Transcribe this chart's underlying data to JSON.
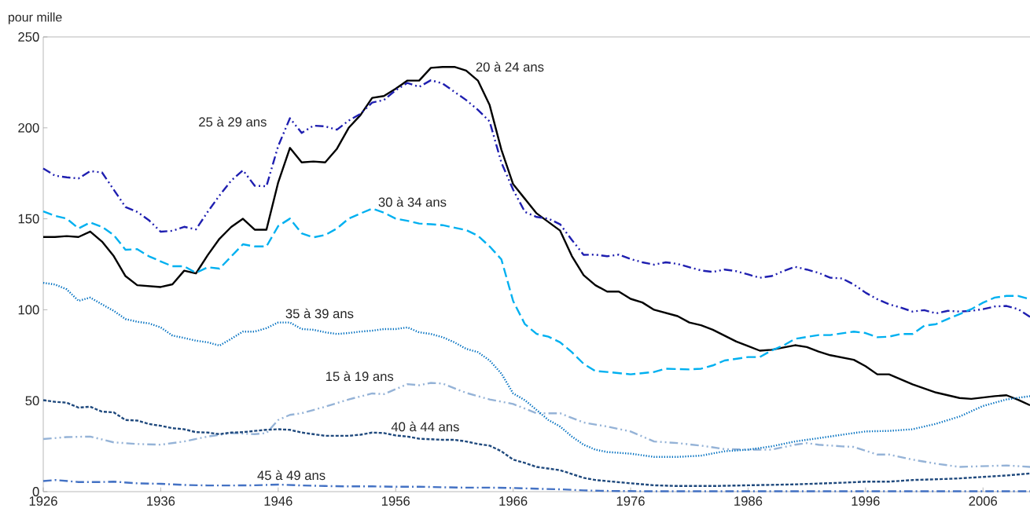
{
  "chart_data": {
    "type": "line",
    "ylabel": "pour mille",
    "xlim": [
      1926,
      2010
    ],
    "xticks": [
      1926,
      1936,
      1946,
      1956,
      1966,
      1976,
      1986,
      1996,
      2006
    ],
    "ylim": [
      0,
      250
    ],
    "yticks": [
      0,
      50,
      100,
      150,
      200,
      250
    ],
    "series": [
      {
        "name": "15 à 19 ans",
        "color": "#95b3d7",
        "line_style": "dashdotdot",
        "x": [
          1926,
          1928,
          1930,
          1932,
          1934,
          1936,
          1938,
          1940,
          1942,
          1944,
          1945,
          1946,
          1947,
          1948,
          1950,
          1952,
          1954,
          1955,
          1957,
          1958,
          1959,
          1960,
          1962,
          1964,
          1966,
          1968,
          1970,
          1972,
          1974,
          1976,
          1978,
          1980,
          1982,
          1984,
          1986,
          1988,
          1990,
          1991,
          1992,
          1994,
          1995,
          1997,
          1998,
          2000,
          2002,
          2004,
          2006,
          2008,
          2010
        ],
        "values": [
          28.9,
          30,
          30.3,
          27.1,
          26.2,
          25.8,
          27.6,
          30.3,
          32.2,
          31.6,
          32.2,
          39.4,
          42.2,
          43.1,
          46.7,
          50.7,
          54,
          53.6,
          59.1,
          58.5,
          59.8,
          59.4,
          54.3,
          50.7,
          48.2,
          43.1,
          43.1,
          38,
          35.8,
          33.1,
          27.6,
          26.7,
          25.3,
          23.4,
          23.1,
          23.1,
          25.8,
          26.7,
          25.8,
          24.9,
          24.6,
          20.4,
          20.4,
          17.6,
          15.4,
          13.6,
          14,
          14.4,
          13.6
        ]
      },
      {
        "name": "20 à 24 ans",
        "color": "#000000",
        "line_style": "solid",
        "x": [
          1926,
          1927,
          1928,
          1929,
          1930,
          1931,
          1932,
          1933,
          1934,
          1936,
          1937,
          1938,
          1939,
          1940,
          1941,
          1942,
          1943,
          1944,
          1945,
          1946,
          1947,
          1948,
          1949,
          1950,
          1951,
          1952,
          1953,
          1954,
          1955,
          1956,
          1957,
          1958,
          1959,
          1960,
          1961,
          1962,
          1963,
          1964,
          1965,
          1966,
          1967,
          1968,
          1970,
          1971,
          1972,
          1973,
          1974,
          1975,
          1976,
          1977,
          1978,
          1980,
          1981,
          1982,
          1983,
          1985,
          1986,
          1987,
          1988,
          1990,
          1991,
          1992,
          1993,
          1995,
          1996,
          1997,
          1998,
          2000,
          2002,
          2004,
          2005,
          2007,
          2008,
          2009,
          2010
        ],
        "values": [
          140,
          140,
          140.5,
          140,
          143,
          137.5,
          129.5,
          118.5,
          113.5,
          112.5,
          114,
          121.5,
          120,
          130,
          139,
          145.5,
          150,
          144,
          144,
          170,
          189,
          181,
          181.5,
          181,
          188.5,
          200,
          207,
          216.5,
          217.5,
          221.5,
          226,
          226,
          233,
          233.5,
          233.5,
          231.5,
          226,
          212.5,
          188,
          169,
          161,
          153,
          143.5,
          129.5,
          119,
          113.5,
          110,
          110,
          106,
          104,
          100,
          96.5,
          93,
          91.5,
          89,
          82.5,
          80,
          77.5,
          78,
          80.5,
          79.5,
          77,
          75,
          72.5,
          69,
          64.5,
          64.5,
          59,
          54.5,
          51.5,
          51,
          52.5,
          53,
          50.5,
          47.5
        ]
      },
      {
        "name": "25 à 29 ans",
        "color": "#1f1fb0",
        "line_style": "dashdotdot",
        "x": [
          1926,
          1927,
          1928,
          1929,
          1930,
          1931,
          1933,
          1934,
          1935,
          1936,
          1937,
          1938,
          1939,
          1940,
          1941,
          1942,
          1943,
          1944,
          1945,
          1946,
          1947,
          1948,
          1949,
          1950,
          1951,
          1952,
          1953,
          1954,
          1955,
          1956,
          1957,
          1958,
          1959,
          1960,
          1961,
          1962,
          1963,
          1964,
          1965,
          1966,
          1967,
          1968,
          1969,
          1970,
          1971,
          1972,
          1973,
          1974,
          1975,
          1976,
          1977,
          1978,
          1979,
          1980,
          1982,
          1983,
          1984,
          1985,
          1986,
          1987,
          1988,
          1989,
          1990,
          1991,
          1992,
          1993,
          1994,
          1995,
          1996,
          1997,
          1998,
          1999,
          2000,
          2001,
          2002,
          2003,
          2004,
          2005,
          2006,
          2007,
          2008,
          2009,
          2010
        ],
        "values": [
          177.7,
          173.7,
          172.8,
          172.2,
          176.2,
          175.5,
          156.5,
          153.8,
          149.2,
          142.9,
          143.4,
          145.6,
          144.2,
          153.8,
          162.8,
          171,
          176.7,
          168.2,
          167.9,
          190,
          205.3,
          197.2,
          201.2,
          200.8,
          199,
          204,
          207.7,
          213.9,
          215.3,
          220.7,
          224.7,
          222.5,
          226.2,
          224.4,
          219.8,
          215.3,
          209.9,
          203.5,
          180.9,
          166,
          153.8,
          151,
          150.1,
          147,
          138.4,
          130.2,
          130.3,
          129.4,
          130.3,
          127.9,
          126.1,
          124.8,
          126.1,
          125.2,
          121.6,
          120.8,
          122.1,
          121.2,
          119.4,
          117.6,
          118.5,
          121.2,
          123.6,
          122.1,
          120.3,
          117.6,
          117.2,
          113.9,
          109.4,
          105.8,
          103,
          101.2,
          99,
          99.8,
          98,
          99.4,
          99,
          99.4,
          100.3,
          101.8,
          102.1,
          100.3,
          96.1
        ]
      },
      {
        "name": "30 à 34 ans",
        "color": "#00b0f0",
        "line_style": "dashed",
        "x": [
          1926,
          1927,
          1928,
          1929,
          1930,
          1931,
          1932,
          1933,
          1934,
          1935,
          1936,
          1937,
          1938,
          1939,
          1940,
          1941,
          1943,
          1944,
          1945,
          1946,
          1947,
          1948,
          1949,
          1950,
          1951,
          1952,
          1953,
          1954,
          1955,
          1956,
          1957,
          1958,
          1959,
          1960,
          1961,
          1962,
          1963,
          1964,
          1965,
          1966,
          1967,
          1968,
          1969,
          1970,
          1971,
          1972,
          1973,
          1974,
          1976,
          1978,
          1979,
          1981,
          1982,
          1983,
          1984,
          1986,
          1987,
          1988,
          1989,
          1990,
          1992,
          1993,
          1995,
          1996,
          1997,
          1998,
          1999,
          2000,
          2001,
          2002,
          2003,
          2004,
          2005,
          2006,
          2007,
          2008,
          2009,
          2010
        ],
        "values": [
          154.1,
          151.6,
          150.1,
          144.7,
          148,
          145.6,
          141.1,
          133,
          133.3,
          129.4,
          126.6,
          123.9,
          123.9,
          120.3,
          123.4,
          122.6,
          136,
          134.8,
          134.8,
          146,
          150.1,
          142,
          139.8,
          141.1,
          144.7,
          150.1,
          152.9,
          155.6,
          153.4,
          150.1,
          148.9,
          147.4,
          147,
          146.5,
          145.1,
          143.8,
          140.7,
          134.8,
          127.7,
          104.8,
          92.1,
          86.7,
          85.2,
          82.1,
          76.7,
          70.3,
          66.3,
          65.8,
          64.5,
          65.8,
          67.6,
          67.2,
          67.6,
          69.4,
          72.1,
          74,
          74,
          77.6,
          80.3,
          84,
          86.1,
          86.1,
          88,
          87.2,
          84.9,
          85.2,
          86.7,
          86.7,
          91.2,
          92.1,
          94.9,
          97.6,
          100.3,
          103.9,
          106.7,
          107.6,
          107.6,
          105.8
        ]
      },
      {
        "name": "35 à 39 ans",
        "color": "#0070c0",
        "line_style": "dotted",
        "x": [
          1926,
          1927,
          1928,
          1929,
          1930,
          1931,
          1932,
          1933,
          1934,
          1935,
          1936,
          1937,
          1938,
          1939,
          1940,
          1941,
          1942,
          1943,
          1944,
          1945,
          1946,
          1947,
          1948,
          1949,
          1950,
          1951,
          1952,
          1953,
          1954,
          1955,
          1956,
          1957,
          1958,
          1959,
          1960,
          1961,
          1962,
          1963,
          1964,
          1965,
          1966,
          1967,
          1968,
          1969,
          1970,
          1971,
          1972,
          1973,
          1974,
          1976,
          1977,
          1978,
          1980,
          1982,
          1984,
          1986,
          1988,
          1990,
          1992,
          1994,
          1996,
          1998,
          2000,
          2002,
          2004,
          2006,
          2008,
          2010
        ],
        "values": [
          114.8,
          113.9,
          111.2,
          104.9,
          106.7,
          103,
          99.4,
          94.9,
          93.4,
          92.5,
          90.3,
          85.8,
          84.5,
          83,
          82.1,
          80.3,
          84,
          88,
          88,
          89.9,
          93,
          93,
          89.4,
          89,
          87.6,
          86.7,
          87.2,
          88,
          88.5,
          89.4,
          89.4,
          90.3,
          87.6,
          86.7,
          84.9,
          82.1,
          78.5,
          76.7,
          72.1,
          64.9,
          54,
          50.3,
          44.9,
          39.4,
          35.8,
          30.3,
          25.8,
          23.1,
          21.8,
          20.9,
          20,
          19.1,
          19.1,
          19.8,
          22.2,
          23.1,
          24.9,
          27.6,
          29.4,
          31.3,
          33.1,
          33.4,
          34.3,
          37.3,
          41.3,
          47.1,
          50.7,
          52.5
        ]
      },
      {
        "name": "40 à 44 ans",
        "color": "#1f497d",
        "line_style": "shortdashed",
        "x": [
          1926,
          1927,
          1928,
          1929,
          1930,
          1931,
          1932,
          1933,
          1934,
          1935,
          1936,
          1937,
          1938,
          1939,
          1940,
          1941,
          1942,
          1943,
          1944,
          1945,
          1946,
          1947,
          1948,
          1949,
          1950,
          1952,
          1953,
          1954,
          1955,
          1956,
          1957,
          1958,
          1960,
          1961,
          1962,
          1963,
          1964,
          1965,
          1966,
          1967,
          1968,
          1970,
          1972,
          1973,
          1976,
          1978,
          1980,
          1983,
          1986,
          1990,
          1994,
          1996,
          1998,
          2000,
          2002,
          2004,
          2006,
          2008,
          2010
        ],
        "values": [
          50.3,
          49.4,
          48.9,
          46.2,
          46.7,
          44,
          43.6,
          39.4,
          39.1,
          37.2,
          36.2,
          34.9,
          34.3,
          32.7,
          32.5,
          31.6,
          32.5,
          32.7,
          33.4,
          34,
          34.3,
          34,
          32.5,
          31.6,
          30.7,
          30.7,
          31.3,
          32.5,
          32.2,
          30.9,
          30.3,
          29.1,
          28.5,
          28.5,
          27.6,
          26.2,
          25.3,
          22.2,
          17.6,
          15.8,
          13.6,
          11.8,
          7.6,
          6.4,
          4.6,
          3.5,
          3.1,
          3.1,
          3.5,
          4,
          4.9,
          5.5,
          5.5,
          6.4,
          6.8,
          7.3,
          8.1,
          8.9,
          10
        ]
      },
      {
        "name": "45 à 49 ans",
        "color": "#4472c4",
        "line_style": "dashdot",
        "x": [
          1926,
          1927,
          1929,
          1931,
          1932,
          1934,
          1936,
          1938,
          1940,
          1942,
          1944,
          1946,
          1948,
          1950,
          1952,
          1954,
          1956,
          1958,
          1960,
          1962,
          1964,
          1966,
          1968,
          1970,
          1972,
          1974,
          1978,
          1986,
          1994,
          2002,
          2010
        ],
        "values": [
          5.8,
          6.4,
          5.3,
          5.3,
          5.5,
          4.6,
          4.3,
          3.7,
          3.4,
          3.4,
          3.5,
          3.9,
          3.4,
          3.1,
          2.9,
          2.9,
          2.7,
          2.7,
          2.4,
          2.2,
          2.2,
          2,
          1.6,
          1.3,
          0.7,
          0.4,
          0.2,
          0.2,
          0.2,
          0.2,
          0.2
        ]
      }
    ]
  }
}
